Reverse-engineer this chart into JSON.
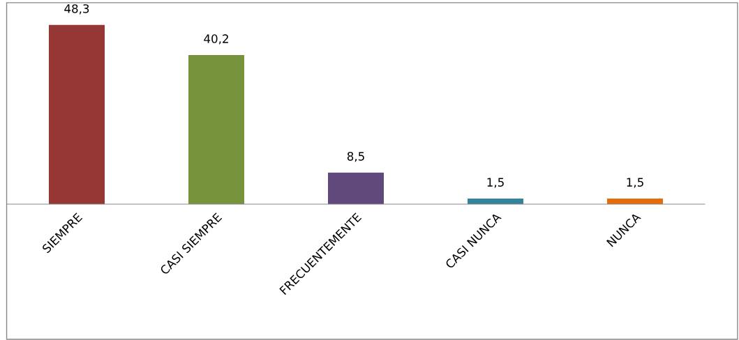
{
  "chart_data": {
    "type": "bar",
    "categories": [
      "SIEMPRE",
      "CASI SIEMPRE",
      "FRECUENTEMENTE",
      "CASI NUNCA",
      "NUNCA"
    ],
    "values": [
      48.3,
      40.2,
      8.5,
      1.5,
      1.5
    ],
    "value_labels": [
      "48,3",
      "40,2",
      "8,5",
      "1,5",
      "1,5"
    ],
    "colors": [
      "#953735",
      "#77933c",
      "#604a7b",
      "#31849b",
      "#e46c0a"
    ],
    "grid": false,
    "legend": false
  }
}
